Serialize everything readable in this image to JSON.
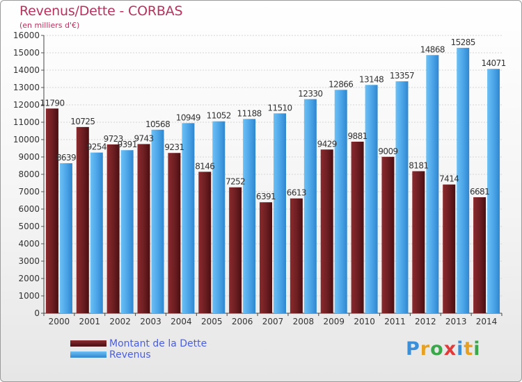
{
  "header": {
    "title": "Revenus/Dette - CORBAS",
    "subtitle": "(en milliers d'€)"
  },
  "chart_data": {
    "type": "bar",
    "title": "Revenus/Dette - CORBAS",
    "subtitle": "(en milliers d'€)",
    "categories": [
      "2000",
      "2001",
      "2002",
      "2003",
      "2004",
      "2005",
      "2006",
      "2007",
      "2008",
      "2009",
      "2010",
      "2011",
      "2012",
      "2013",
      "2014"
    ],
    "series": [
      {
        "name": "Montant de la Dette",
        "color": "#6e1f22",
        "values": [
          11790,
          10725,
          9723,
          9743,
          9231,
          8146,
          7252,
          6391,
          6613,
          9429,
          9881,
          9009,
          8181,
          7414,
          6681
        ],
        "labels": [
          "11790",
          "10725",
          "9723",
          "9743",
          "9231",
          "8146",
          "7252",
          "6391",
          "6613",
          "9429",
          "9881",
          "9009",
          "8181",
          "7414",
          "6681"
        ]
      },
      {
        "name": "Revenus",
        "color": "#4aa3e6",
        "values": [
          8639,
          9254,
          9391,
          10568,
          10949,
          11052,
          11188,
          11510,
          12330,
          12866,
          13148,
          13357,
          14868,
          15285,
          14071
        ],
        "labels": [
          "8639",
          "9254",
          "9391",
          "10568",
          "10949",
          "11052",
          "11188",
          "11510",
          "12330",
          "12866",
          "13148",
          "13357",
          "14868",
          "15285",
          "14071"
        ]
      }
    ],
    "ylim": [
      0,
      16000
    ],
    "yticks": [
      0,
      1000,
      2000,
      3000,
      4000,
      5000,
      6000,
      7000,
      8000,
      9000,
      10000,
      11000,
      12000,
      13000,
      14000,
      15000,
      16000
    ],
    "grid": true,
    "legend_position": "bottom-left"
  },
  "legend": {
    "items": [
      {
        "label": "Montant de la Dette",
        "color": "#6e1f22"
      },
      {
        "label": "Revenus",
        "color": "#4aa3e6"
      }
    ]
  },
  "logo": {
    "letters": [
      "P",
      "r",
      "o",
      "x",
      "i",
      "t",
      "i"
    ],
    "colors": [
      "#3a8fd8",
      "#e8a020",
      "#3aa84a",
      "#e03a3a",
      "#3a8fd8",
      "#e8a020",
      "#3aa84a"
    ]
  }
}
